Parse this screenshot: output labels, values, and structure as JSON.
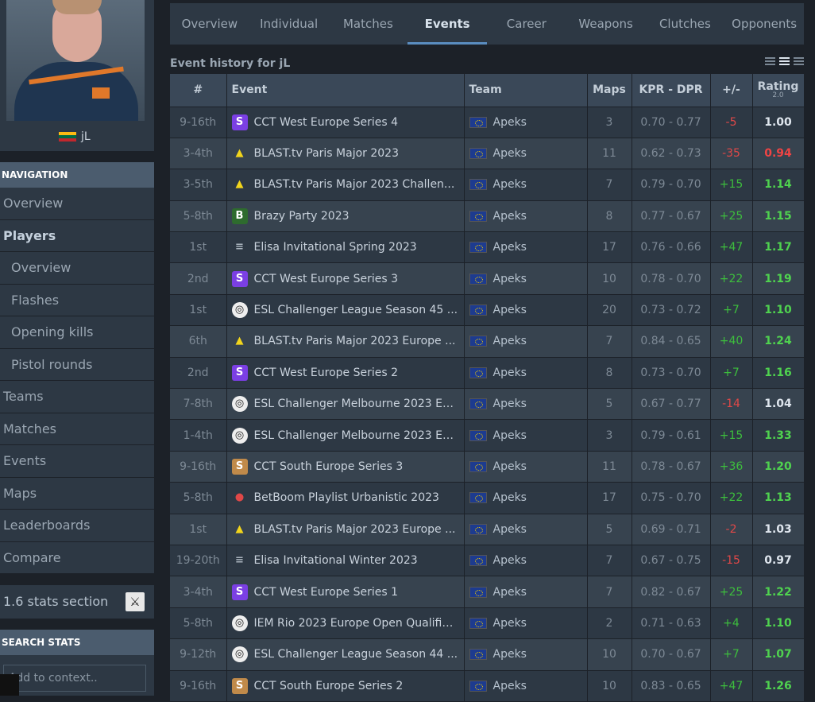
{
  "player": {
    "nickname": "jL",
    "flag": "Lithuania"
  },
  "navigation": {
    "header": "NAVIGATION",
    "items": [
      {
        "label": "Overview",
        "level": "top"
      },
      {
        "label": "Players",
        "level": "top",
        "bold": true
      },
      {
        "label": "Overview",
        "level": "sub"
      },
      {
        "label": "Flashes",
        "level": "sub"
      },
      {
        "label": "Opening kills",
        "level": "sub"
      },
      {
        "label": "Pistol rounds",
        "level": "sub"
      },
      {
        "label": "Teams",
        "level": "top"
      },
      {
        "label": "Matches",
        "level": "top"
      },
      {
        "label": "Events",
        "level": "top"
      },
      {
        "label": "Maps",
        "level": "top"
      },
      {
        "label": "Leaderboards",
        "level": "top"
      },
      {
        "label": "Compare",
        "level": "top"
      }
    ]
  },
  "stats16": {
    "label": "1.6 stats section",
    "icon": "counter-strike-icon"
  },
  "search": {
    "header": "SEARCH STATS",
    "placeholder": "Add to context.."
  },
  "tabs": [
    {
      "label": "Overview"
    },
    {
      "label": "Individual"
    },
    {
      "label": "Matches"
    },
    {
      "label": "Events",
      "active": true
    },
    {
      "label": "Career"
    },
    {
      "label": "Weapons"
    },
    {
      "label": "Clutches"
    },
    {
      "label": "Opponents"
    }
  ],
  "section_title": "Event history for jL",
  "table": {
    "headers": {
      "num": "#",
      "event": "Event",
      "team": "Team",
      "maps": "Maps",
      "kpr_dpr": "KPR - DPR",
      "plus_minus": "+/-",
      "rating": "Rating",
      "rating_version": "2.0"
    },
    "rows": [
      {
        "place": "9-16th",
        "event": "CCT West Europe Series 4",
        "icon": "cct-icon",
        "team": "Apeks",
        "maps": "3",
        "kpr_dpr": "0.70 - 0.77",
        "pm": "-5",
        "rating": "1.00"
      },
      {
        "place": "3-4th",
        "event": "BLAST.tv Paris Major 2023",
        "icon": "blast-icon",
        "team": "Apeks",
        "maps": "11",
        "kpr_dpr": "0.62 - 0.73",
        "pm": "-35",
        "rating": "0.94"
      },
      {
        "place": "3-5th",
        "event": "BLAST.tv Paris Major 2023 Challen...",
        "icon": "blast-icon",
        "team": "Apeks",
        "maps": "7",
        "kpr_dpr": "0.79 - 0.70",
        "pm": "+15",
        "rating": "1.14"
      },
      {
        "place": "5-8th",
        "event": "Brazy Party 2023",
        "icon": "brazy-icon",
        "team": "Apeks",
        "maps": "8",
        "kpr_dpr": "0.77 - 0.67",
        "pm": "+25",
        "rating": "1.15"
      },
      {
        "place": "1st",
        "event": "Elisa Invitational Spring 2023",
        "icon": "elisa-icon",
        "team": "Apeks",
        "maps": "17",
        "kpr_dpr": "0.76 - 0.66",
        "pm": "+47",
        "rating": "1.17"
      },
      {
        "place": "2nd",
        "event": "CCT West Europe Series 3",
        "icon": "cct-icon",
        "team": "Apeks",
        "maps": "10",
        "kpr_dpr": "0.78 - 0.70",
        "pm": "+22",
        "rating": "1.19"
      },
      {
        "place": "1st",
        "event": "ESL Challenger League Season 45 ...",
        "icon": "esl-icon",
        "team": "Apeks",
        "maps": "20",
        "kpr_dpr": "0.73 - 0.72",
        "pm": "+7",
        "rating": "1.10"
      },
      {
        "place": "6th",
        "event": "BLAST.tv Paris Major 2023 Europe ...",
        "icon": "blast-icon",
        "team": "Apeks",
        "maps": "7",
        "kpr_dpr": "0.84 - 0.65",
        "pm": "+40",
        "rating": "1.24"
      },
      {
        "place": "2nd",
        "event": "CCT West Europe Series 2",
        "icon": "cct-icon",
        "team": "Apeks",
        "maps": "8",
        "kpr_dpr": "0.73 - 0.70",
        "pm": "+7",
        "rating": "1.16"
      },
      {
        "place": "7-8th",
        "event": "ESL Challenger Melbourne 2023 Eu...",
        "icon": "esl-icon",
        "team": "Apeks",
        "maps": "5",
        "kpr_dpr": "0.67 - 0.77",
        "pm": "-14",
        "rating": "1.04"
      },
      {
        "place": "1-4th",
        "event": "ESL Challenger Melbourne 2023 Eu...",
        "icon": "esl-icon",
        "team": "Apeks",
        "maps": "3",
        "kpr_dpr": "0.79 - 0.61",
        "pm": "+15",
        "rating": "1.33"
      },
      {
        "place": "9-16th",
        "event": "CCT South Europe Series 3",
        "icon": "cct-south-icon",
        "team": "Apeks",
        "maps": "11",
        "kpr_dpr": "0.78 - 0.67",
        "pm": "+36",
        "rating": "1.20"
      },
      {
        "place": "5-8th",
        "event": "BetBoom Playlist Urbanistic 2023",
        "icon": "betboom-icon",
        "team": "Apeks",
        "maps": "17",
        "kpr_dpr": "0.75 - 0.70",
        "pm": "+22",
        "rating": "1.13"
      },
      {
        "place": "1st",
        "event": "BLAST.tv Paris Major 2023 Europe ...",
        "icon": "blast-icon",
        "team": "Apeks",
        "maps": "5",
        "kpr_dpr": "0.69 - 0.71",
        "pm": "-2",
        "rating": "1.03"
      },
      {
        "place": "19-20th",
        "event": "Elisa Invitational Winter 2023",
        "icon": "elisa-icon",
        "team": "Apeks",
        "maps": "7",
        "kpr_dpr": "0.67 - 0.75",
        "pm": "-15",
        "rating": "0.97"
      },
      {
        "place": "3-4th",
        "event": "CCT West Europe Series 1",
        "icon": "cct-icon",
        "team": "Apeks",
        "maps": "7",
        "kpr_dpr": "0.82 - 0.67",
        "pm": "+25",
        "rating": "1.22"
      },
      {
        "place": "5-8th",
        "event": "IEM Rio 2023 Europe Open Qualifie...",
        "icon": "esl-icon",
        "team": "Apeks",
        "maps": "2",
        "kpr_dpr": "0.71 - 0.63",
        "pm": "+4",
        "rating": "1.10"
      },
      {
        "place": "9-12th",
        "event": "ESL Challenger League Season 44 ...",
        "icon": "esl-icon",
        "team": "Apeks",
        "maps": "10",
        "kpr_dpr": "0.70 - 0.67",
        "pm": "+7",
        "rating": "1.07"
      },
      {
        "place": "9-16th",
        "event": "CCT South Europe Series 2",
        "icon": "cct-south-icon",
        "team": "Apeks",
        "maps": "10",
        "kpr_dpr": "0.83 - 0.65",
        "pm": "+47",
        "rating": "1.26"
      }
    ]
  },
  "colors": {
    "positive": "#3dbe3d",
    "negative": "#e04848",
    "rating_high": "#4fd24f",
    "rating_low": "#f04444",
    "accent": "#5a8dc0"
  }
}
